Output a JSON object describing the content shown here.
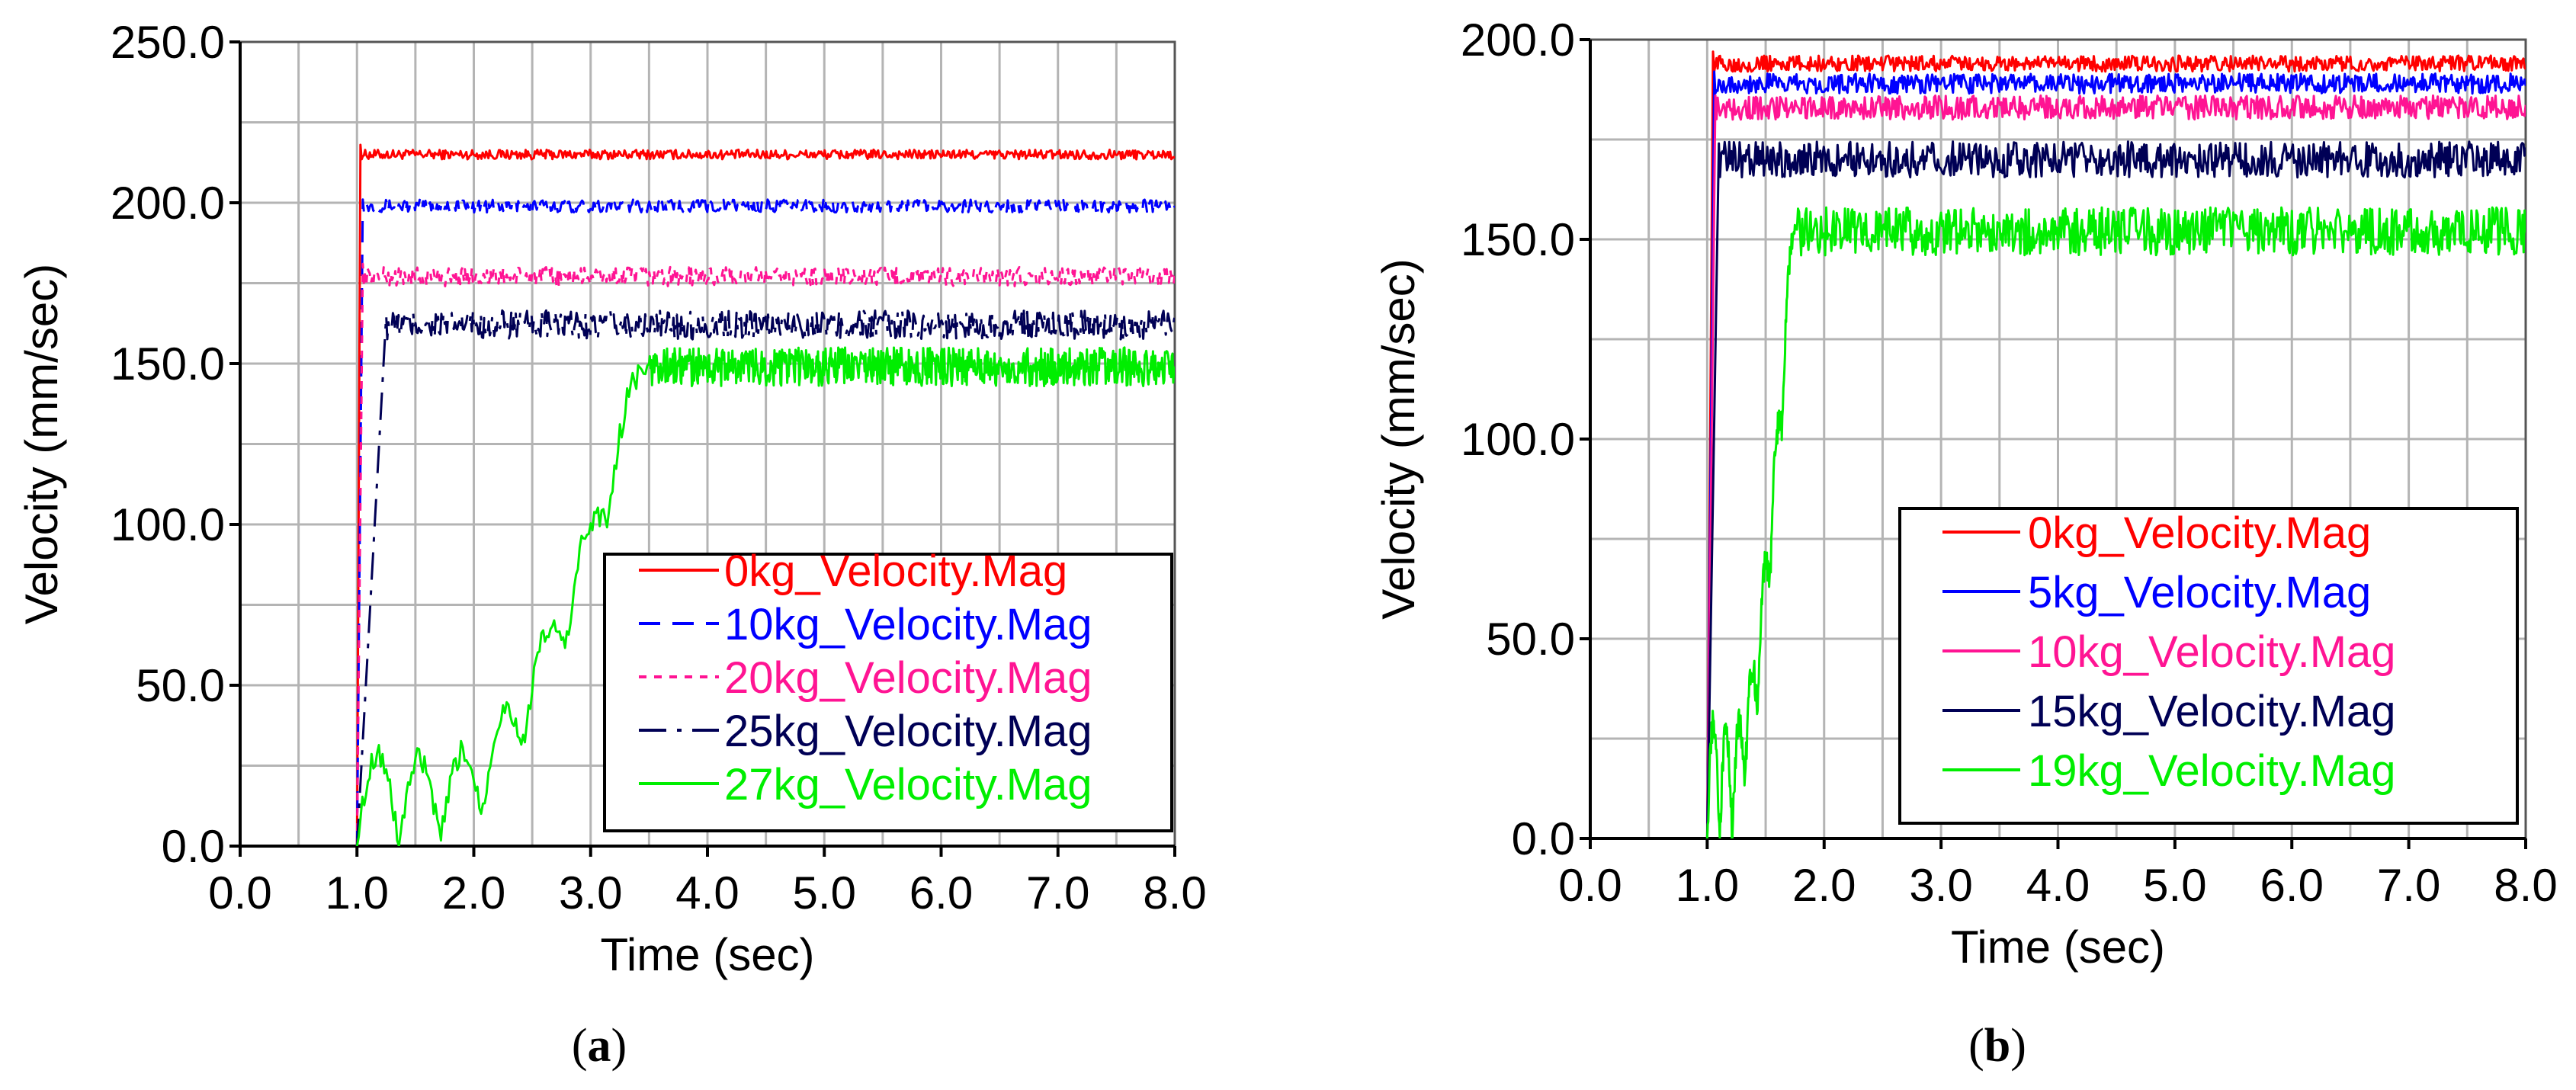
{
  "chart_data": [
    {
      "type": "line",
      "panel": "a",
      "caption": "a",
      "xlabel": "Time (sec)",
      "ylabel": "Velocity (mm/sec)",
      "xlim": [
        0,
        8
      ],
      "ylim": [
        0,
        250
      ],
      "xticks": [
        "0.0",
        "1.0",
        "2.0",
        "3.0",
        "4.0",
        "5.0",
        "6.0",
        "7.0",
        "8.0"
      ],
      "yticks": [
        "0.0",
        "50.0",
        "100.0",
        "150.0",
        "200.0",
        "250.0"
      ],
      "grid": true,
      "legend_position": "bottom-right",
      "series": [
        {
          "name": "0kg_Velocity.Mag",
          "color": "#ff0000",
          "dash": "solid",
          "start": 1.0,
          "peak": 218,
          "steady": 215,
          "noise": 1.5,
          "rise_end": 1.03
        },
        {
          "name": "10kg_Velocity.Mag",
          "color": "#0000ff",
          "dash": "dashed",
          "start": 1.0,
          "peak": 201,
          "steady": 199,
          "noise": 2.0,
          "rise_end": 1.05
        },
        {
          "name": "20kg_Velocity.Mag",
          "color": "#ff1493",
          "dash": "dotted",
          "start": 1.0,
          "peak": 181,
          "steady": 177,
          "noise": 3.0,
          "rise_end": 1.05
        },
        {
          "name": "25kg_Velocity.Mag",
          "color": "#000055",
          "dash": "dashdot",
          "start": 1.0,
          "peak": 165,
          "steady": 162,
          "noise": 4.5,
          "rise_end": 1.25
        },
        {
          "name": "27kg_Velocity.Mag",
          "color": "#00ee00",
          "dash": "solid",
          "start": 1.0,
          "peak": 150,
          "steady": 149,
          "noise": 6.0,
          "rise_end": 3.5
        }
      ]
    },
    {
      "type": "line",
      "panel": "b",
      "caption": "b",
      "xlabel": "Time (sec)",
      "ylabel": "Velocity (mm/sec)",
      "xlim": [
        0,
        8
      ],
      "ylim": [
        0,
        200
      ],
      "xticks": [
        "0.0",
        "1.0",
        "2.0",
        "3.0",
        "4.0",
        "5.0",
        "6.0",
        "7.0",
        "8.0"
      ],
      "yticks": [
        "0.0",
        "50.0",
        "100.0",
        "150.0",
        "200.0"
      ],
      "grid": true,
      "legend_position": "bottom-right",
      "series": [
        {
          "name": "0kg_Velocity.Mag",
          "color": "#ff0000",
          "dash": "solid",
          "start": 1.0,
          "peak": 197,
          "steady": 194,
          "noise": 2.0,
          "rise_end": 1.05
        },
        {
          "name": "5kg_Velocity.Mag",
          "color": "#0000ff",
          "dash": "solid",
          "start": 1.0,
          "peak": 192,
          "steady": 189,
          "noise": 2.5,
          "rise_end": 1.06
        },
        {
          "name": "10kg_Velocity.Mag",
          "color": "#ff1493",
          "dash": "solid",
          "start": 1.0,
          "peak": 186,
          "steady": 183,
          "noise": 3.0,
          "rise_end": 1.07
        },
        {
          "name": "15kg_Velocity.Mag",
          "color": "#000055",
          "dash": "solid",
          "start": 1.0,
          "peak": 174,
          "steady": 170,
          "noise": 4.5,
          "rise_end": 1.1
        },
        {
          "name": "19kg_Velocity.Mag",
          "color": "#00ee00",
          "dash": "solid",
          "start": 1.0,
          "peak": 155,
          "steady": 152,
          "noise": 6.0,
          "rise_end": 1.75
        }
      ]
    }
  ]
}
